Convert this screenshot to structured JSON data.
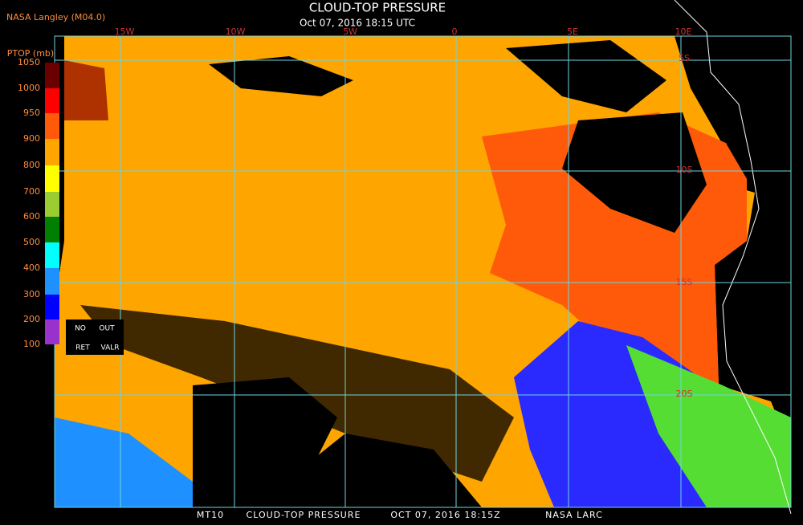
{
  "header": {
    "title": "CLOUD-TOP PRESSURE",
    "subtitle": "Oct 07, 2016 18:15 UTC",
    "source": "NASA Langley (M04.0)"
  },
  "legend": {
    "title": "PTOP (mb)",
    "ticks": [
      1050,
      1000,
      950,
      900,
      800,
      700,
      600,
      500,
      400,
      300,
      200,
      100
    ],
    "flags": [
      "NO",
      "OUT",
      "RET",
      "VALR"
    ]
  },
  "map": {
    "lon_labels": [
      "15W",
      "10W",
      "5W",
      "0",
      "5E",
      "10E"
    ],
    "lat_labels": [
      "5S",
      "10S",
      "15S",
      "20S"
    ]
  },
  "footer": {
    "parts": [
      "MT10",
      "CLOUD-TOP PRESSURE",
      "OCT 07, 2016 18:15Z",
      "NASA LARC"
    ]
  }
}
